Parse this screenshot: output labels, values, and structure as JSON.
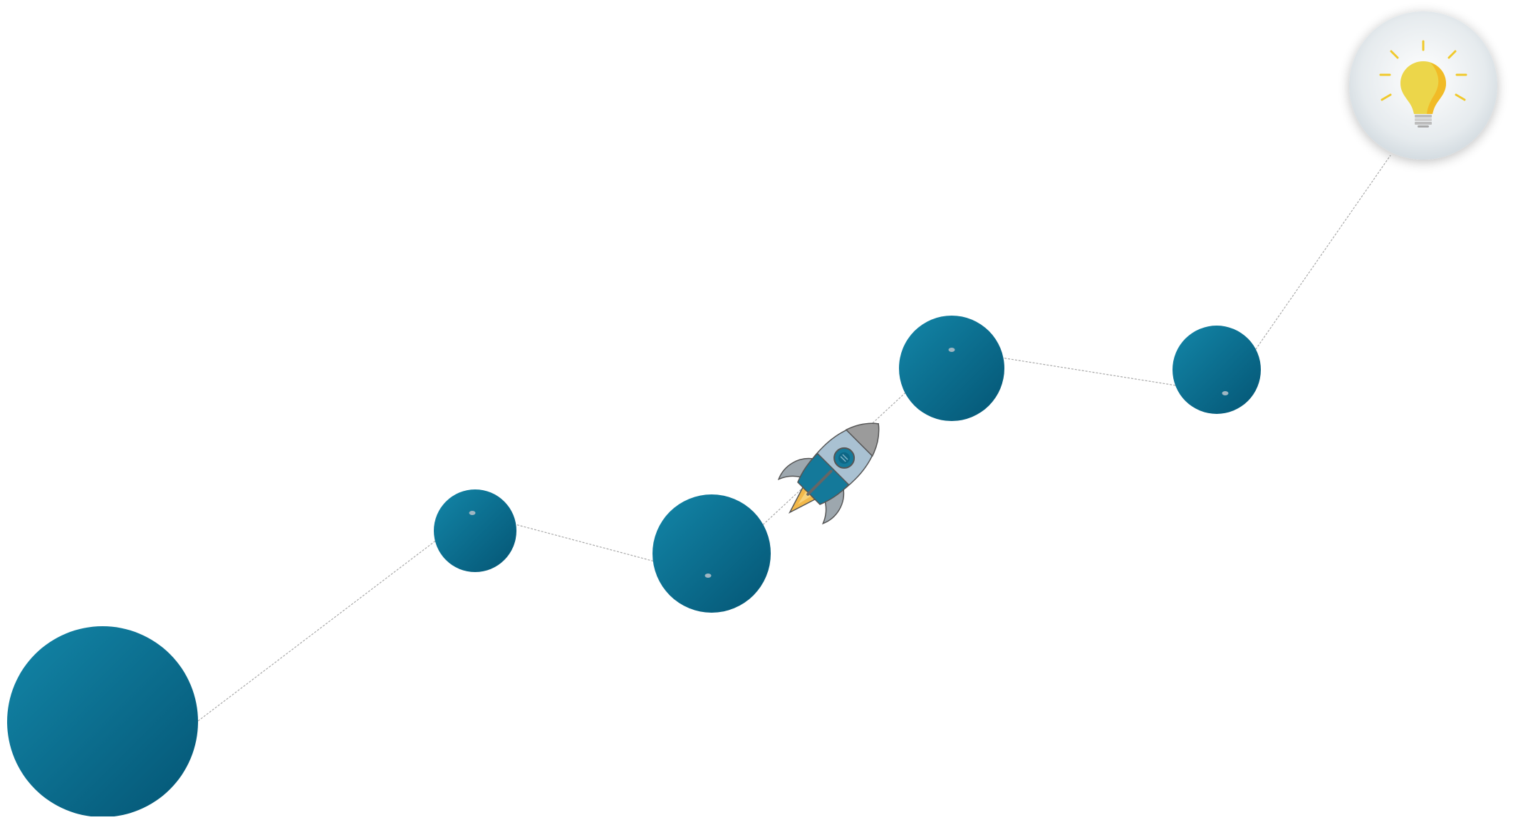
{
  "diagram": {
    "nodes": [
      {
        "id": "planet-1",
        "kind": "planet"
      },
      {
        "id": "planet-2",
        "kind": "planet"
      },
      {
        "id": "planet-3",
        "kind": "planet"
      },
      {
        "id": "planet-4",
        "kind": "planet"
      },
      {
        "id": "planet-5",
        "kind": "planet"
      },
      {
        "id": "goal",
        "kind": "lightbulb"
      }
    ],
    "path": [
      "planet-1",
      "planet-2",
      "planet-3",
      "planet-4",
      "planet-5",
      "goal"
    ],
    "traveler_icon": "rocket-icon",
    "goal_icon": "lightbulb-icon",
    "colors": {
      "planet_light": "#1386a8",
      "planet_dark": "#045574",
      "path_line": "#a9a9a9",
      "goal_circle": "#e6ebee",
      "bulb": "#f0c92b",
      "rocket_body": "#a9c1d2",
      "rocket_nose": "#9b9b9b",
      "rocket_flame": "#f2b84a"
    }
  }
}
